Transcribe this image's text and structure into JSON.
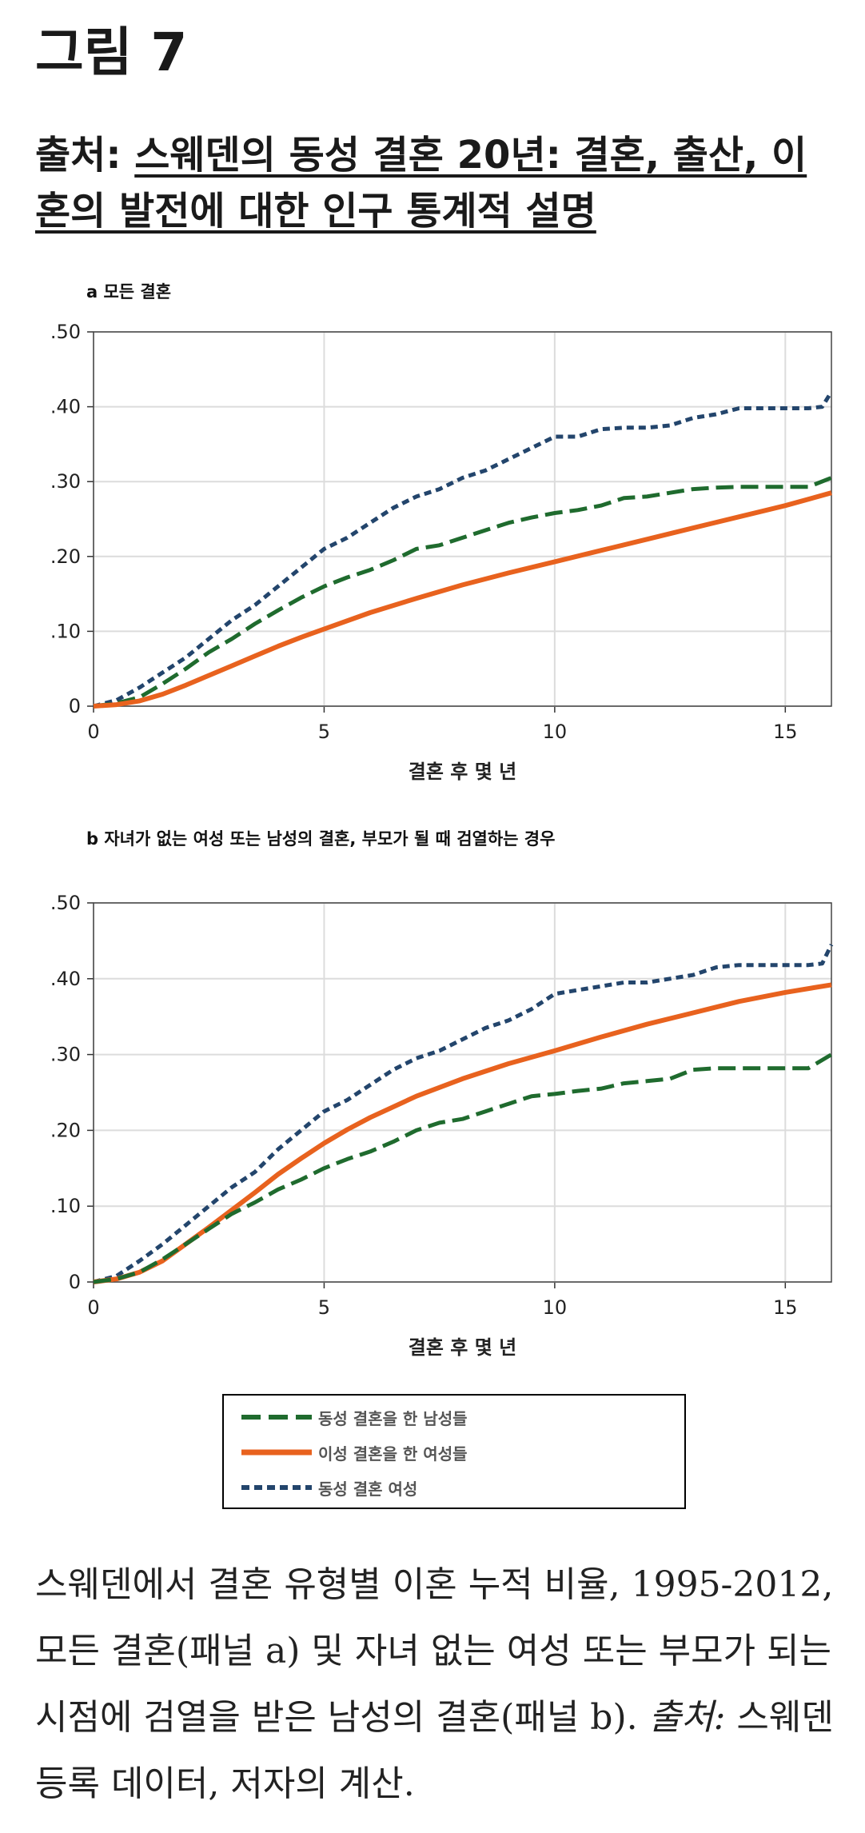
{
  "figure": {
    "title": "그림 7",
    "source_prefix": "출처:",
    "source_text": "스웨덴의 동성 결혼 20년: 결혼, 출산, 이혼의 발전에 대한 인구 통계적 설명"
  },
  "colors": {
    "green": "#1f6b2e",
    "orange": "#e8621e",
    "blue": "#23456c",
    "grid": "#dcdcdc"
  },
  "chart_data": [
    {
      "type": "line",
      "panel": "a",
      "title": "a 모든 결혼",
      "xlabel": "결혼 후 몇 년",
      "ylabel": "",
      "xlim": [
        0,
        16
      ],
      "ylim": [
        0,
        0.5
      ],
      "x_ticks": [
        0,
        5,
        10,
        15
      ],
      "x_tick_labels": [
        "0",
        "5",
        "10",
        "15"
      ],
      "y_ticks": [
        0,
        0.1,
        0.2,
        0.3,
        0.4,
        0.5
      ],
      "y_tick_labels": [
        "0",
        ".10",
        ".20",
        ".30",
        ".40",
        ".50"
      ],
      "grid": true,
      "series": [
        {
          "key": "blue",
          "style": "dash-short",
          "points": [
            [
              0,
              0
            ],
            [
              0.5,
              0.008
            ],
            [
              1,
              0.025
            ],
            [
              1.5,
              0.045
            ],
            [
              2,
              0.065
            ],
            [
              2.5,
              0.09
            ],
            [
              3,
              0.115
            ],
            [
              3.5,
              0.135
            ],
            [
              4,
              0.16
            ],
            [
              4.5,
              0.185
            ],
            [
              5,
              0.21
            ],
            [
              5.5,
              0.225
            ],
            [
              6,
              0.245
            ],
            [
              6.5,
              0.265
            ],
            [
              7,
              0.28
            ],
            [
              7.5,
              0.29
            ],
            [
              8,
              0.305
            ],
            [
              8.5,
              0.315
            ],
            [
              9,
              0.33
            ],
            [
              9.5,
              0.345
            ],
            [
              10,
              0.36
            ],
            [
              10.5,
              0.36
            ],
            [
              11,
              0.37
            ],
            [
              11.5,
              0.372
            ],
            [
              12,
              0.372
            ],
            [
              12.5,
              0.375
            ],
            [
              13,
              0.385
            ],
            [
              13.5,
              0.39
            ],
            [
              14,
              0.398
            ],
            [
              14.5,
              0.398
            ],
            [
              15,
              0.398
            ],
            [
              15.5,
              0.398
            ],
            [
              15.8,
              0.4
            ],
            [
              16,
              0.42
            ]
          ]
        },
        {
          "key": "green",
          "style": "dash-long",
          "points": [
            [
              0,
              0
            ],
            [
              0.5,
              0.004
            ],
            [
              1,
              0.012
            ],
            [
              1.5,
              0.03
            ],
            [
              2,
              0.05
            ],
            [
              2.5,
              0.072
            ],
            [
              3,
              0.09
            ],
            [
              3.5,
              0.11
            ],
            [
              4,
              0.128
            ],
            [
              4.5,
              0.145
            ],
            [
              5,
              0.16
            ],
            [
              5.5,
              0.172
            ],
            [
              6,
              0.182
            ],
            [
              6.5,
              0.195
            ],
            [
              7,
              0.21
            ],
            [
              7.5,
              0.215
            ],
            [
              8,
              0.225
            ],
            [
              8.5,
              0.235
            ],
            [
              9,
              0.245
            ],
            [
              9.5,
              0.252
            ],
            [
              10,
              0.258
            ],
            [
              10.5,
              0.262
            ],
            [
              11,
              0.268
            ],
            [
              11.5,
              0.278
            ],
            [
              12,
              0.28
            ],
            [
              12.5,
              0.285
            ],
            [
              13,
              0.29
            ],
            [
              13.5,
              0.292
            ],
            [
              14,
              0.293
            ],
            [
              14.5,
              0.293
            ],
            [
              15,
              0.293
            ],
            [
              15.5,
              0.293
            ],
            [
              16,
              0.305
            ]
          ]
        },
        {
          "key": "orange",
          "style": "solid",
          "points": [
            [
              0,
              0
            ],
            [
              0.5,
              0.002
            ],
            [
              1,
              0.007
            ],
            [
              1.5,
              0.016
            ],
            [
              2,
              0.028
            ],
            [
              2.5,
              0.041
            ],
            [
              3,
              0.054
            ],
            [
              3.5,
              0.067
            ],
            [
              4,
              0.08
            ],
            [
              4.5,
              0.092
            ],
            [
              5,
              0.103
            ],
            [
              6,
              0.125
            ],
            [
              7,
              0.144
            ],
            [
              8,
              0.162
            ],
            [
              9,
              0.178
            ],
            [
              10,
              0.193
            ],
            [
              11,
              0.208
            ],
            [
              12,
              0.223
            ],
            [
              13,
              0.238
            ],
            [
              14,
              0.253
            ],
            [
              15,
              0.268
            ],
            [
              16,
              0.285
            ]
          ]
        }
      ]
    },
    {
      "type": "line",
      "panel": "b",
      "title": "b 자녀가 없는 여성 또는 남성의 결혼, 부모가 될 때 검열하는 경우",
      "xlabel": "결혼 후 몇 년",
      "ylabel": "",
      "xlim": [
        0,
        16
      ],
      "ylim": [
        0,
        0.5
      ],
      "x_ticks": [
        0,
        5,
        10,
        15
      ],
      "x_tick_labels": [
        "0",
        "5",
        "10",
        "15"
      ],
      "y_ticks": [
        0,
        0.1,
        0.2,
        0.3,
        0.4,
        0.5
      ],
      "y_tick_labels": [
        "0",
        ".10",
        ".20",
        ".30",
        ".40",
        ".50"
      ],
      "grid": true,
      "series": [
        {
          "key": "blue",
          "style": "dash-short",
          "points": [
            [
              0,
              0
            ],
            [
              0.5,
              0.008
            ],
            [
              1,
              0.028
            ],
            [
              1.5,
              0.05
            ],
            [
              2,
              0.075
            ],
            [
              2.5,
              0.1
            ],
            [
              3,
              0.125
            ],
            [
              3.5,
              0.145
            ],
            [
              4,
              0.175
            ],
            [
              4.5,
              0.2
            ],
            [
              5,
              0.225
            ],
            [
              5.5,
              0.24
            ],
            [
              6,
              0.26
            ],
            [
              6.5,
              0.28
            ],
            [
              7,
              0.295
            ],
            [
              7.5,
              0.305
            ],
            [
              8,
              0.32
            ],
            [
              8.5,
              0.335
            ],
            [
              9,
              0.345
            ],
            [
              9.5,
              0.36
            ],
            [
              10,
              0.38
            ],
            [
              10.5,
              0.385
            ],
            [
              11,
              0.39
            ],
            [
              11.5,
              0.395
            ],
            [
              12,
              0.395
            ],
            [
              12.5,
              0.4
            ],
            [
              13,
              0.405
            ],
            [
              13.5,
              0.415
            ],
            [
              14,
              0.418
            ],
            [
              14.5,
              0.418
            ],
            [
              15,
              0.418
            ],
            [
              15.5,
              0.418
            ],
            [
              15.8,
              0.42
            ],
            [
              16,
              0.445
            ]
          ]
        },
        {
          "key": "orange",
          "style": "solid",
          "points": [
            [
              0,
              0
            ],
            [
              0.5,
              0.004
            ],
            [
              1,
              0.013
            ],
            [
              1.5,
              0.028
            ],
            [
              2,
              0.05
            ],
            [
              2.5,
              0.072
            ],
            [
              3,
              0.095
            ],
            [
              3.5,
              0.118
            ],
            [
              4,
              0.142
            ],
            [
              4.5,
              0.163
            ],
            [
              5,
              0.183
            ],
            [
              5.5,
              0.201
            ],
            [
              6,
              0.217
            ],
            [
              7,
              0.245
            ],
            [
              8,
              0.268
            ],
            [
              9,
              0.288
            ],
            [
              10,
              0.305
            ],
            [
              11,
              0.323
            ],
            [
              12,
              0.34
            ],
            [
              13,
              0.355
            ],
            [
              14,
              0.37
            ],
            [
              15,
              0.382
            ],
            [
              16,
              0.392
            ]
          ]
        },
        {
          "key": "green",
          "style": "dash-long",
          "points": [
            [
              0,
              0
            ],
            [
              0.5,
              0.004
            ],
            [
              1,
              0.013
            ],
            [
              1.5,
              0.03
            ],
            [
              2,
              0.05
            ],
            [
              2.5,
              0.07
            ],
            [
              3,
              0.09
            ],
            [
              3.5,
              0.105
            ],
            [
              4,
              0.122
            ],
            [
              4.5,
              0.135
            ],
            [
              5,
              0.15
            ],
            [
              5.5,
              0.162
            ],
            [
              6,
              0.172
            ],
            [
              6.5,
              0.185
            ],
            [
              7,
              0.2
            ],
            [
              7.5,
              0.21
            ],
            [
              8,
              0.215
            ],
            [
              8.5,
              0.225
            ],
            [
              9,
              0.235
            ],
            [
              9.5,
              0.245
            ],
            [
              10,
              0.248
            ],
            [
              10.5,
              0.252
            ],
            [
              11,
              0.255
            ],
            [
              11.5,
              0.262
            ],
            [
              12,
              0.265
            ],
            [
              12.5,
              0.268
            ],
            [
              13,
              0.28
            ],
            [
              13.5,
              0.282
            ],
            [
              14,
              0.282
            ],
            [
              14.5,
              0.282
            ],
            [
              15,
              0.282
            ],
            [
              15.5,
              0.282
            ],
            [
              16,
              0.3
            ]
          ]
        }
      ]
    }
  ],
  "legend": [
    {
      "key": "green",
      "style": "dash-long",
      "label": "동성 결혼을 한 남성들"
    },
    {
      "key": "orange",
      "style": "solid",
      "label": "이성 결혼을 한 여성들"
    },
    {
      "key": "blue",
      "style": "dash-short",
      "label": "동성 결혼 여성"
    }
  ],
  "caption": {
    "main": "스웨덴에서 결혼 유형별 이혼 누적 비율, 1995-2012, 모든 결혼(패널 a) 및 자녀 없는 여성 또는 부모가 되는 시점에 검열을 받은 남성의 결혼(패널 b). ",
    "source_label": "출처:",
    "source_text": " 스웨덴 등록 데이터, 저자의 계산."
  }
}
